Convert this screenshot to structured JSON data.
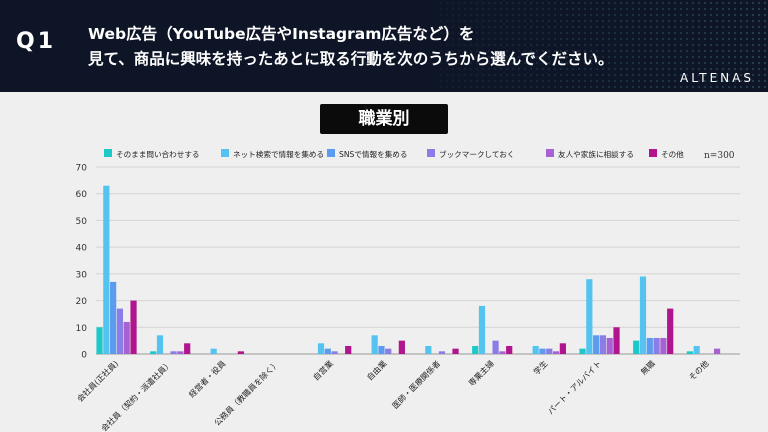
{
  "header": {
    "q_label": "Q1",
    "question_line1": "Web広告（YouTube広告やInstagram広告など）を",
    "question_line2": "見て、商品に興味を持ったあとに取る行動を次のうちから選んでください。",
    "brand": "ALTENAS"
  },
  "subtitle": "職業別",
  "chart_data": {
    "type": "bar",
    "sample_note": "n=300",
    "ylim": [
      0,
      70
    ],
    "yticks": [
      0,
      10,
      20,
      30,
      40,
      50,
      60,
      70
    ],
    "grid": true,
    "legend_position": "top",
    "categories": [
      "会社員(正社員)",
      "会社員（契約・派遣社員）",
      "経営者・役員",
      "公務員（教職員を除く）",
      "自営業",
      "自由業",
      "医師・医療関係者",
      "専業主婦",
      "学生",
      "パート・アルバイト",
      "無職",
      "その他"
    ],
    "series": [
      {
        "name": "そのまま問い合わせする",
        "color": "#1ec8c8",
        "values": [
          10,
          1,
          0,
          0,
          0,
          0,
          0,
          3,
          0,
          2,
          5,
          1
        ]
      },
      {
        "name": "ネット検索で情報を集める",
        "color": "#55c3ef",
        "values": [
          63,
          7,
          2,
          0,
          4,
          7,
          3,
          18,
          3,
          28,
          29,
          3
        ]
      },
      {
        "name": "SNSで情報を集める",
        "color": "#5b9cf0",
        "values": [
          27,
          0,
          0,
          0,
          2,
          3,
          0,
          0,
          2,
          7,
          6,
          0
        ]
      },
      {
        "name": "ブックマークしておく",
        "color": "#8a7ee6",
        "values": [
          17,
          1,
          0,
          0,
          1,
          2,
          1,
          5,
          2,
          7,
          6,
          0
        ]
      },
      {
        "name": "友人や家族に相談する",
        "color": "#a861d3",
        "values": [
          12,
          1,
          0,
          0,
          0,
          0,
          0,
          1,
          1,
          6,
          6,
          2
        ]
      },
      {
        "name": "その他",
        "color": "#b0158e",
        "values": [
          20,
          4,
          1,
          0,
          3,
          5,
          2,
          3,
          4,
          10,
          17,
          0
        ]
      }
    ]
  }
}
